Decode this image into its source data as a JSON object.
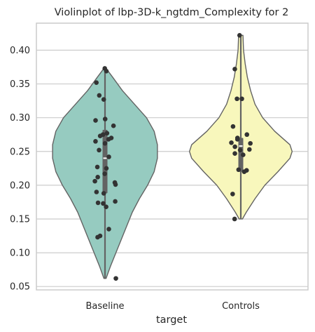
{
  "chart_data": {
    "type": "violin",
    "title": "Violinplot of lbp-3D-k_ngtdm_Complexity for 2",
    "xlabel": "target",
    "ylabel": "",
    "ylim": [
      0.045,
      0.44
    ],
    "yticks": [
      "0.05",
      "0.10",
      "0.15",
      "0.20",
      "0.25",
      "0.30",
      "0.35",
      "0.40"
    ],
    "grid": "horizontal",
    "categories": [
      "Baseline",
      "Controls"
    ],
    "colors": {
      "Baseline": "#96cbc0",
      "Controls": "#f8f7bc",
      "outline": "#636363",
      "points": "#333333",
      "grid": "#cccccc",
      "spine": "#cccccc"
    },
    "series": [
      {
        "category": "Baseline",
        "min": 0.062,
        "q1": 0.188,
        "median": 0.24,
        "q3": 0.282,
        "max": 0.373,
        "density": [
          [
            0.062,
            0.02
          ],
          [
            0.08,
            0.1
          ],
          [
            0.1,
            0.2
          ],
          [
            0.12,
            0.3
          ],
          [
            0.14,
            0.4
          ],
          [
            0.16,
            0.5
          ],
          [
            0.18,
            0.63
          ],
          [
            0.2,
            0.78
          ],
          [
            0.22,
            0.9
          ],
          [
            0.24,
            0.96
          ],
          [
            0.26,
            0.96
          ],
          [
            0.28,
            0.9
          ],
          [
            0.3,
            0.76
          ],
          [
            0.32,
            0.54
          ],
          [
            0.34,
            0.32
          ],
          [
            0.36,
            0.14
          ],
          [
            0.373,
            0.02
          ]
        ],
        "points": [
          0.373,
          0.369,
          0.352,
          0.333,
          0.327,
          0.298,
          0.296,
          0.288,
          0.277,
          0.275,
          0.273,
          0.27,
          0.268,
          0.265,
          0.262,
          0.252,
          0.242,
          0.227,
          0.225,
          0.217,
          0.212,
          0.206,
          0.204,
          0.201,
          0.19,
          0.188,
          0.176,
          0.174,
          0.173,
          0.168,
          0.135,
          0.125,
          0.123,
          0.062
        ]
      },
      {
        "category": "Controls",
        "min": 0.15,
        "q1": 0.22,
        "median": 0.258,
        "q3": 0.27,
        "max": 0.422,
        "density": [
          [
            0.15,
            0.03
          ],
          [
            0.16,
            0.1
          ],
          [
            0.18,
            0.26
          ],
          [
            0.2,
            0.44
          ],
          [
            0.22,
            0.68
          ],
          [
            0.24,
            0.9
          ],
          [
            0.25,
            0.94
          ],
          [
            0.26,
            0.9
          ],
          [
            0.28,
            0.62
          ],
          [
            0.3,
            0.4
          ],
          [
            0.32,
            0.26
          ],
          [
            0.34,
            0.18
          ],
          [
            0.36,
            0.12
          ],
          [
            0.38,
            0.08
          ],
          [
            0.4,
            0.05
          ],
          [
            0.422,
            0.04
          ]
        ],
        "points": [
          0.422,
          0.372,
          0.328,
          0.328,
          0.287,
          0.275,
          0.27,
          0.268,
          0.263,
          0.262,
          0.257,
          0.253,
          0.252,
          0.247,
          0.245,
          0.223,
          0.222,
          0.22,
          0.187,
          0.15
        ]
      }
    ]
  }
}
